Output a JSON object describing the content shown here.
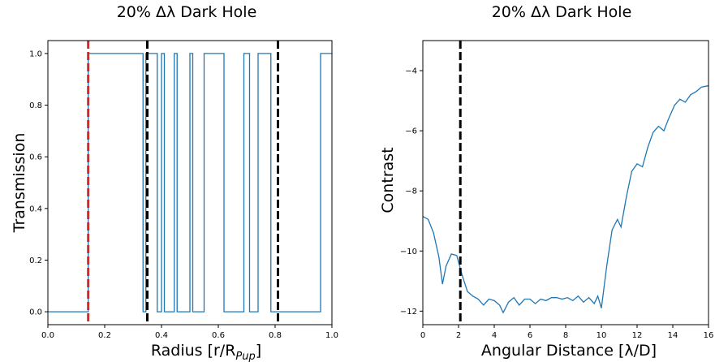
{
  "chart_data": [
    {
      "type": "line",
      "title": "20% Δλ Dark Hole",
      "xlabel": "Radius [r/R",
      "xlabel_sub": "Pup",
      "xlabel_tail": "]",
      "ylabel": "Transmission",
      "xlim": [
        0.0,
        1.0
      ],
      "ylim": [
        -0.05,
        1.05
      ],
      "xticks": [
        "0.0",
        "0.2",
        "0.4",
        "0.6",
        "0.8",
        "1.0"
      ],
      "yticks": [
        "0.0",
        "0.2",
        "0.4",
        "0.6",
        "0.8",
        "1.0"
      ],
      "line_color": "#1f77b4",
      "series": [
        {
          "x": [
            0.0,
            0.142,
            0.142,
            0.335,
            0.335,
            0.345,
            0.345,
            0.385,
            0.385,
            0.4,
            0.4,
            0.41,
            0.41,
            0.445,
            0.445,
            0.455,
            0.455,
            0.5,
            0.5,
            0.51,
            0.51,
            0.55,
            0.55,
            0.62,
            0.62,
            0.69,
            0.69,
            0.71,
            0.71,
            0.74,
            0.74,
            0.785,
            0.785,
            0.8,
            0.8,
            0.96,
            0.96,
            1.0
          ],
          "y": [
            0,
            0,
            1,
            1,
            0,
            0,
            1,
            1,
            0,
            0,
            1,
            1,
            0,
            0,
            1,
            1,
            0,
            0,
            1,
            1,
            0,
            0,
            1,
            1,
            0,
            0,
            1,
            1,
            0,
            0,
            1,
            1,
            0,
            0,
            0,
            0,
            1,
            1
          ]
        }
      ],
      "vlines": [
        {
          "x": 0.142,
          "color": "#d62728",
          "style": "dashed"
        },
        {
          "x": 0.35,
          "color": "#000000",
          "style": "dashed"
        },
        {
          "x": 0.81,
          "color": "#000000",
          "style": "dashed"
        }
      ],
      "grid": false
    },
    {
      "type": "line",
      "title": "20% Δλ Dark Hole",
      "xlabel": "Angular Distance [λ/D]",
      "ylabel": "Contrast",
      "xlim": [
        0,
        16
      ],
      "ylim": [
        -12.45,
        -3.0
      ],
      "xticks": [
        "0",
        "2",
        "4",
        "6",
        "8",
        "10",
        "12",
        "14",
        "16"
      ],
      "yticks": [
        "−12",
        "−10",
        "−8",
        "−6",
        "−4"
      ],
      "line_color": "#1f77b4",
      "series": [
        {
          "x": [
            0,
            0.3,
            0.6,
            0.9,
            1.1,
            1.3,
            1.6,
            1.9,
            2.2,
            2.5,
            2.8,
            3.1,
            3.4,
            3.7,
            4.0,
            4.3,
            4.5,
            4.8,
            5.1,
            5.4,
            5.7,
            6.0,
            6.3,
            6.6,
            6.9,
            7.2,
            7.5,
            7.8,
            8.1,
            8.4,
            8.7,
            9.0,
            9.3,
            9.6,
            9.8,
            10.0,
            10.3,
            10.6,
            10.9,
            11.1,
            11.4,
            11.7,
            12.0,
            12.3,
            12.6,
            12.9,
            13.2,
            13.5,
            13.8,
            14.1,
            14.4,
            14.7,
            15.0,
            15.3,
            15.6,
            16.0
          ],
          "y": [
            -8.85,
            -8.95,
            -9.4,
            -10.2,
            -11.1,
            -10.5,
            -10.1,
            -10.15,
            -10.8,
            -11.35,
            -11.5,
            -11.6,
            -11.8,
            -11.6,
            -11.65,
            -11.8,
            -12.05,
            -11.7,
            -11.55,
            -11.8,
            -11.6,
            -11.6,
            -11.75,
            -11.6,
            -11.65,
            -11.55,
            -11.55,
            -11.6,
            -11.55,
            -11.65,
            -11.5,
            -11.7,
            -11.55,
            -11.75,
            -11.5,
            -11.9,
            -10.5,
            -9.3,
            -8.95,
            -9.2,
            -8.2,
            -7.35,
            -7.1,
            -7.2,
            -6.55,
            -6.05,
            -5.85,
            -6.0,
            -5.55,
            -5.15,
            -4.95,
            -5.05,
            -4.8,
            -4.7,
            -4.55,
            -4.5
          ]
        }
      ],
      "vlines": [
        {
          "x": 2.1,
          "color": "#000000",
          "style": "dashed"
        }
      ],
      "grid": false
    }
  ]
}
